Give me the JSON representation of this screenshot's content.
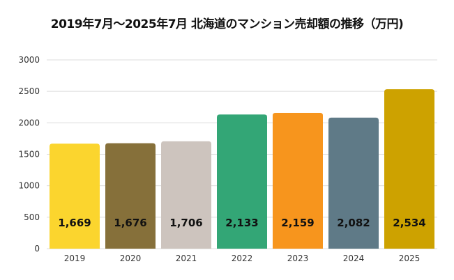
{
  "chart_data": {
    "type": "bar",
    "title": "2019年7月〜2025年7月 北海道のマンション売却額の推移（万円)",
    "categories": [
      "2019",
      "2020",
      "2021",
      "2022",
      "2023",
      "2024",
      "2025"
    ],
    "values": [
      1669,
      1676,
      1706,
      2133,
      2159,
      2082,
      2534
    ],
    "data_labels": [
      "1,669",
      "1,676",
      "1,706",
      "2,133",
      "2,159",
      "2,082",
      "2,534"
    ],
    "colors": [
      "#fbd52e",
      "#86703a",
      "#cdc4be",
      "#33a676",
      "#f7951d",
      "#5f7a87",
      "#cda200"
    ],
    "ylim": [
      0,
      3000
    ],
    "yticks": [
      "0",
      "500",
      "1000",
      "1500",
      "2000",
      "2500",
      "3000"
    ],
    "grid": true,
    "xlabel": "",
    "ylabel": ""
  }
}
